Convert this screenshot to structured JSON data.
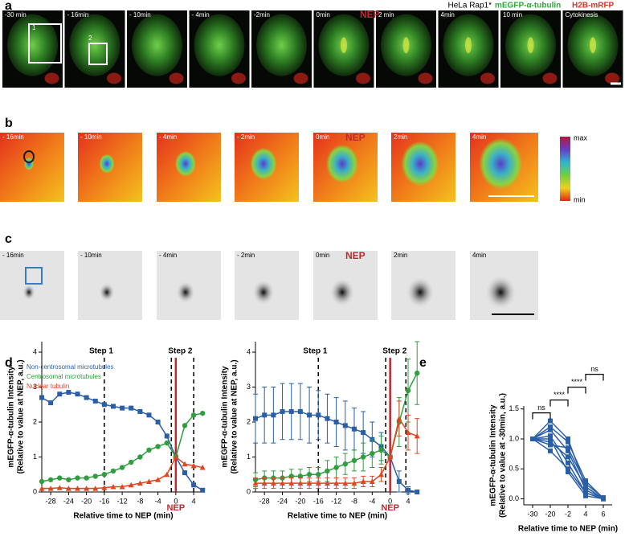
{
  "panels": {
    "a": {
      "label": "a",
      "header": [
        "HeLa Rap1*",
        "mEGFP-α-tubulin",
        "H2B-mRFP"
      ],
      "nep": "NEP",
      "boxes": [
        "1",
        "2"
      ],
      "frames": [
        "-30 min",
        "- 16min",
        "- 10min",
        "- 4min",
        "-2min",
        "0min",
        "2 min",
        "4min",
        "10 min",
        "Cytokinesis"
      ]
    },
    "b": {
      "label": "b",
      "nep": "NEP",
      "colorbar": [
        "max",
        "min"
      ],
      "frames": [
        "- 16min",
        "- 10min",
        "- 4min",
        "- 2min",
        "0min",
        "2min",
        "4min"
      ]
    },
    "c": {
      "label": "c",
      "nep": "NEP",
      "frames": [
        "- 16min",
        "- 10min",
        "- 4min",
        "- 2min",
        "0min",
        "2min",
        "4min"
      ]
    },
    "d": {
      "label": "d"
    },
    "e": {
      "label": "e"
    }
  },
  "chart_data": [
    {
      "type": "line",
      "ylabel": [
        "mEGFP-α-tubulin Intensity",
        "(Relative to value at NEP, a.u.)"
      ],
      "xlabel": "Relative time to NEP (min)",
      "x": [
        -30,
        -28,
        -26,
        -24,
        -22,
        -20,
        -18,
        -16,
        -14,
        -12,
        -10,
        -8,
        -6,
        -4,
        -2,
        0,
        2,
        4,
        6
      ],
      "xlim": [
        -30,
        6.5
      ],
      "xticks": [
        -28,
        -24,
        -20,
        -16,
        -12,
        -8,
        -4,
        0,
        4
      ],
      "ylim": [
        0,
        4.3
      ],
      "yticks": [
        0,
        1,
        2,
        3,
        4
      ],
      "series": [
        {
          "name": "Non-centrosomal microtubules",
          "color": "#2a5fa8",
          "marker": "square",
          "values": [
            2.7,
            2.55,
            2.8,
            2.85,
            2.8,
            2.7,
            2.6,
            2.5,
            2.45,
            2.4,
            2.4,
            2.3,
            2.2,
            2.0,
            1.6,
            1.0,
            0.55,
            0.2,
            0.05
          ]
        },
        {
          "name": "Centrosomal microtubules",
          "color": "#2e9e3e",
          "marker": "circle",
          "values": [
            0.3,
            0.35,
            0.4,
            0.35,
            0.4,
            0.4,
            0.45,
            0.5,
            0.6,
            0.7,
            0.85,
            1.0,
            1.2,
            1.3,
            1.4,
            1.0,
            1.9,
            2.2,
            2.25
          ]
        },
        {
          "name": "Nuclear tubulin",
          "color": "#e0451f",
          "marker": "triangle",
          "values": [
            0.1,
            0.1,
            0.12,
            0.1,
            0.1,
            0.1,
            0.1,
            0.12,
            0.15,
            0.15,
            0.2,
            0.25,
            0.3,
            0.35,
            0.5,
            1.0,
            0.8,
            0.75,
            0.7
          ]
        }
      ],
      "vlines": [
        {
          "x": -16,
          "color": "#000000",
          "dashed": true
        },
        {
          "x": -1,
          "color": "#000000",
          "dashed": true
        },
        {
          "x": 0,
          "color": "#c0282d",
          "dashed": false
        },
        {
          "x": 4,
          "color": "#000000",
          "dashed": true
        }
      ],
      "annotations": [
        {
          "text": "Step 1",
          "x": -14
        },
        {
          "text": "Step 2",
          "x": 1
        }
      ],
      "nep_label": "NEP"
    },
    {
      "type": "line",
      "ylabel": [
        "mEGFP-α-tubulin Intensity",
        "(Relative to value at NEP, a.u.)"
      ],
      "xlabel": "Relative time to NEP (min)",
      "x": [
        -30,
        -28,
        -26,
        -24,
        -22,
        -20,
        -18,
        -16,
        -14,
        -12,
        -10,
        -8,
        -6,
        -4,
        -2,
        0,
        2,
        4,
        6
      ],
      "xlim": [
        -30,
        6.5
      ],
      "xticks": [
        -28,
        -24,
        -20,
        -16,
        -12,
        -8,
        -4,
        0,
        4
      ],
      "ylim": [
        0,
        4.3
      ],
      "yticks": [
        0,
        1,
        2,
        3,
        4
      ],
      "series": [
        {
          "color": "#2a5fa8",
          "marker": "square",
          "values": [
            2.1,
            2.2,
            2.2,
            2.3,
            2.3,
            2.3,
            2.2,
            2.2,
            2.1,
            2.0,
            1.9,
            1.8,
            1.7,
            1.5,
            1.3,
            1.0,
            0.3,
            0.05,
            0.0
          ],
          "errors": [
            0.7,
            0.8,
            0.8,
            0.8,
            0.8,
            0.8,
            0.8,
            0.7,
            0.7,
            0.7,
            0.7,
            0.6,
            0.6,
            0.5,
            0.4,
            0.0,
            0.3,
            0.1,
            0.05
          ]
        },
        {
          "color": "#2e9e3e",
          "marker": "circle",
          "values": [
            0.35,
            0.4,
            0.4,
            0.4,
            0.45,
            0.45,
            0.5,
            0.5,
            0.6,
            0.7,
            0.8,
            0.9,
            1.0,
            1.1,
            1.2,
            1.0,
            2.0,
            2.9,
            3.4
          ],
          "errors": [
            0.2,
            0.2,
            0.2,
            0.2,
            0.2,
            0.2,
            0.2,
            0.2,
            0.3,
            0.3,
            0.3,
            0.3,
            0.4,
            0.4,
            0.4,
            0.0,
            0.7,
            0.9,
            0.9
          ]
        },
        {
          "color": "#e0451f",
          "marker": "triangle",
          "values": [
            0.25,
            0.25,
            0.25,
            0.25,
            0.25,
            0.25,
            0.25,
            0.25,
            0.25,
            0.25,
            0.25,
            0.25,
            0.3,
            0.3,
            0.5,
            1.0,
            2.1,
            1.7,
            1.6
          ],
          "errors": [
            0.15,
            0.15,
            0.15,
            0.15,
            0.15,
            0.15,
            0.15,
            0.15,
            0.15,
            0.15,
            0.15,
            0.15,
            0.15,
            0.15,
            0.2,
            0.0,
            0.5,
            0.5,
            0.5
          ]
        }
      ],
      "vlines": [
        {
          "x": -16,
          "color": "#000000",
          "dashed": true
        },
        {
          "x": -1,
          "color": "#000000",
          "dashed": true
        },
        {
          "x": 0,
          "color": "#c0282d",
          "dashed": false
        },
        {
          "x": 3.5,
          "color": "#000000",
          "dashed": true
        }
      ],
      "annotations": [
        {
          "text": "Step 1",
          "x": -14
        },
        {
          "text": "Step 2",
          "x": 1
        }
      ],
      "nep_label": "NEP"
    },
    {
      "type": "line",
      "ylabel": [
        "mEGFP-α-tubulin Intensity",
        "(Relative to value at -30min, a.u.)"
      ],
      "xlabel": "Relative time to NEP (min)",
      "categories": [
        "-30",
        "-20",
        "-2",
        "4",
        "6"
      ],
      "ylim": [
        -0.1,
        1.55
      ],
      "yticks": [
        {
          "value": 0,
          "label": "0.0"
        },
        0.5,
        {
          "value": 1,
          "label": "1.0"
        },
        1.5
      ],
      "series": [
        {
          "color": "#2a5fa8",
          "values": [
            1,
            1.3,
            1.0,
            0.2,
            0.0
          ]
        },
        {
          "color": "#2a5fa8",
          "values": [
            1,
            1.2,
            0.95,
            0.3,
            0.01
          ]
        },
        {
          "color": "#2a5fa8",
          "values": [
            1,
            1.15,
            0.8,
            0.15,
            0.0
          ]
        },
        {
          "color": "#2a5fa8",
          "values": [
            1,
            1.05,
            0.6,
            0.1,
            0.0
          ]
        },
        {
          "color": "#2a5fa8",
          "values": [
            1,
            1.0,
            0.45,
            0.05,
            0.0
          ]
        },
        {
          "color": "#2a5fa8",
          "values": [
            1,
            0.95,
            0.7,
            0.2,
            0.0
          ]
        },
        {
          "color": "#2a5fa8",
          "values": [
            1,
            0.9,
            0.85,
            0.25,
            0.02
          ]
        },
        {
          "color": "#2a5fa8",
          "values": [
            1,
            0.8,
            0.5,
            0.1,
            0.0
          ]
        }
      ],
      "brackets": [
        {
          "label": "ns",
          "from": "-30",
          "to": "-20"
        },
        {
          "label": "****",
          "from": "-20",
          "to": "-2"
        },
        {
          "label": "****",
          "from": "-2",
          "to": "4"
        },
        {
          "label": "ns",
          "from": "4",
          "to": "6"
        }
      ]
    }
  ]
}
